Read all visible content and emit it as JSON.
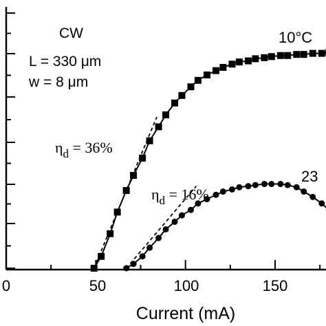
{
  "chart_data": {
    "type": "line",
    "xlabel": "Current (mA)",
    "x_ticks": [
      "0",
      "50",
      "100",
      "150"
    ],
    "xlim": [
      30,
      190
    ],
    "ylim": [
      0,
      1
    ],
    "annotations": {
      "mode": "CW",
      "length": "L = 330 μm",
      "width": "w = 8 μm",
      "eff_high": "η",
      "eff_high_sub": "d",
      "eff_high_val": " = 36%",
      "eff_low": "η",
      "eff_low_sub": "d",
      "eff_low_val": " = 16%",
      "temp_high": "10°C",
      "temp_low": "23"
    },
    "series": [
      {
        "name": "10°C",
        "marker": "square",
        "x": [
          49,
          53,
          58,
          62,
          67,
          71,
          76,
          80,
          85,
          89,
          94,
          98,
          103,
          107,
          112,
          117,
          121,
          126,
          130,
          135,
          139,
          144,
          148,
          153,
          157,
          162,
          166,
          171,
          176,
          180,
          185
        ],
        "y": [
          0.0,
          0.055,
          0.16,
          0.26,
          0.36,
          0.43,
          0.51,
          0.59,
          0.655,
          0.71,
          0.765,
          0.8,
          0.84,
          0.87,
          0.895,
          0.915,
          0.93,
          0.945,
          0.955,
          0.96,
          0.97,
          0.975,
          0.98,
          0.985,
          0.985,
          0.99,
          0.99,
          0.995,
          0.995,
          1.0,
          1.0
        ]
      },
      {
        "name": "23",
        "marker": "circle",
        "x": [
          67,
          71,
          76,
          80,
          85,
          89,
          94,
          98,
          103,
          107,
          112,
          117,
          121,
          126,
          130,
          135,
          139,
          144,
          148,
          153,
          157,
          162,
          166,
          171,
          176,
          180
        ],
        "y": [
          0.0,
          0.02,
          0.055,
          0.095,
          0.14,
          0.18,
          0.215,
          0.245,
          0.27,
          0.3,
          0.32,
          0.34,
          0.355,
          0.365,
          0.375,
          0.38,
          0.385,
          0.39,
          0.39,
          0.39,
          0.385,
          0.375,
          0.355,
          0.33,
          0.3,
          0.27
        ]
      }
    ],
    "fit_lines": [
      {
        "x": [
          49,
          84
        ],
        "y": [
          0.0,
          0.7
        ]
      },
      {
        "x": [
          67,
          106
        ],
        "y": [
          0.0,
          0.38
        ]
      }
    ]
  }
}
